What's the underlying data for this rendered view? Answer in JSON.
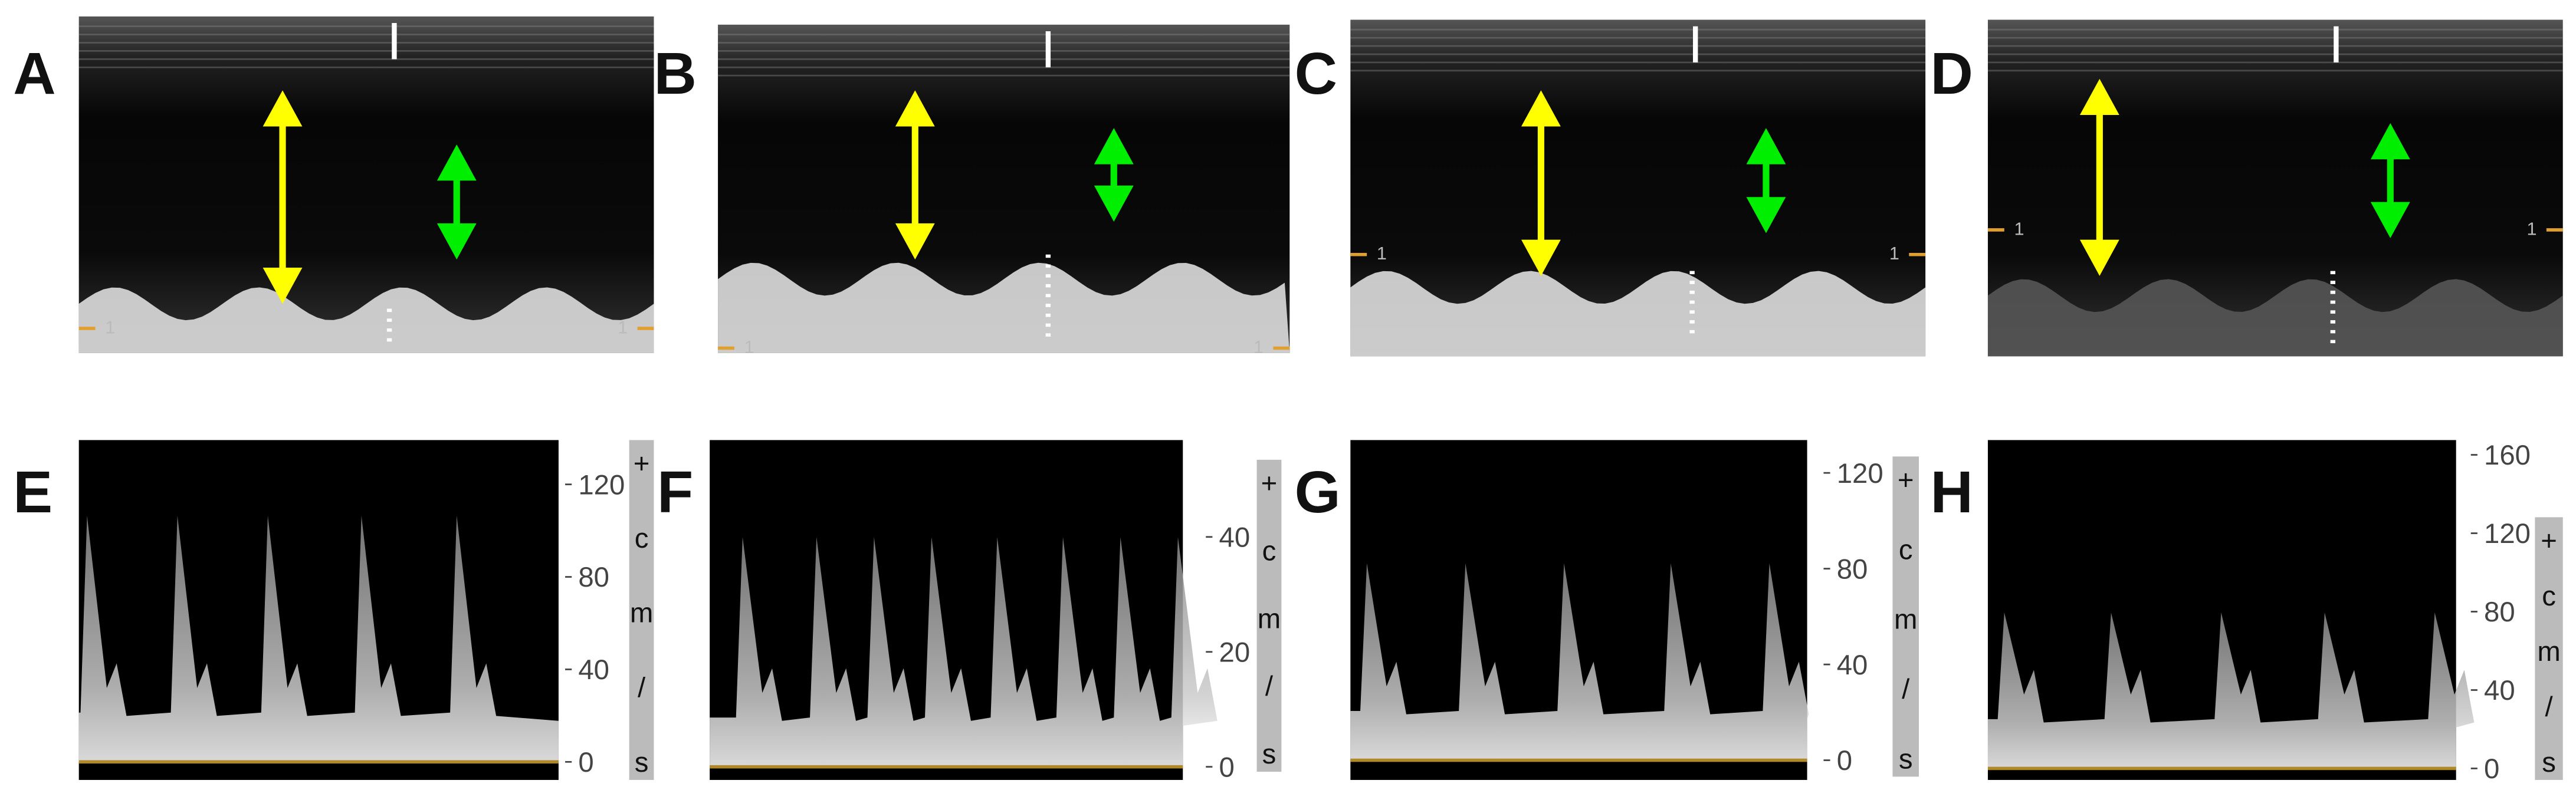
{
  "mmode": [
    {
      "label": "A",
      "markers": [
        "1",
        "1"
      ]
    },
    {
      "label": "B",
      "markers": [
        "1",
        "1"
      ]
    },
    {
      "label": "C",
      "markers": [
        "1",
        "1"
      ]
    },
    {
      "label": "D",
      "markers": [
        "1",
        "1"
      ]
    }
  ],
  "doppler": [
    {
      "label": "E",
      "ticks": [
        120,
        80,
        40,
        0
      ],
      "unit": [
        "+",
        "c",
        "m",
        "/",
        "s"
      ]
    },
    {
      "label": "F",
      "ticks": [
        40,
        20,
        0
      ],
      "unit": [
        "+",
        "c",
        "m",
        "/",
        "s"
      ]
    },
    {
      "label": "G",
      "ticks": [
        120,
        80,
        40,
        0
      ],
      "unit": [
        "+",
        "c",
        "m",
        "/",
        "s"
      ]
    },
    {
      "label": "H",
      "ticks": [
        160,
        120,
        80,
        40,
        0
      ],
      "unit": [
        "+",
        "c",
        "m",
        "/",
        "s"
      ]
    }
  ]
}
